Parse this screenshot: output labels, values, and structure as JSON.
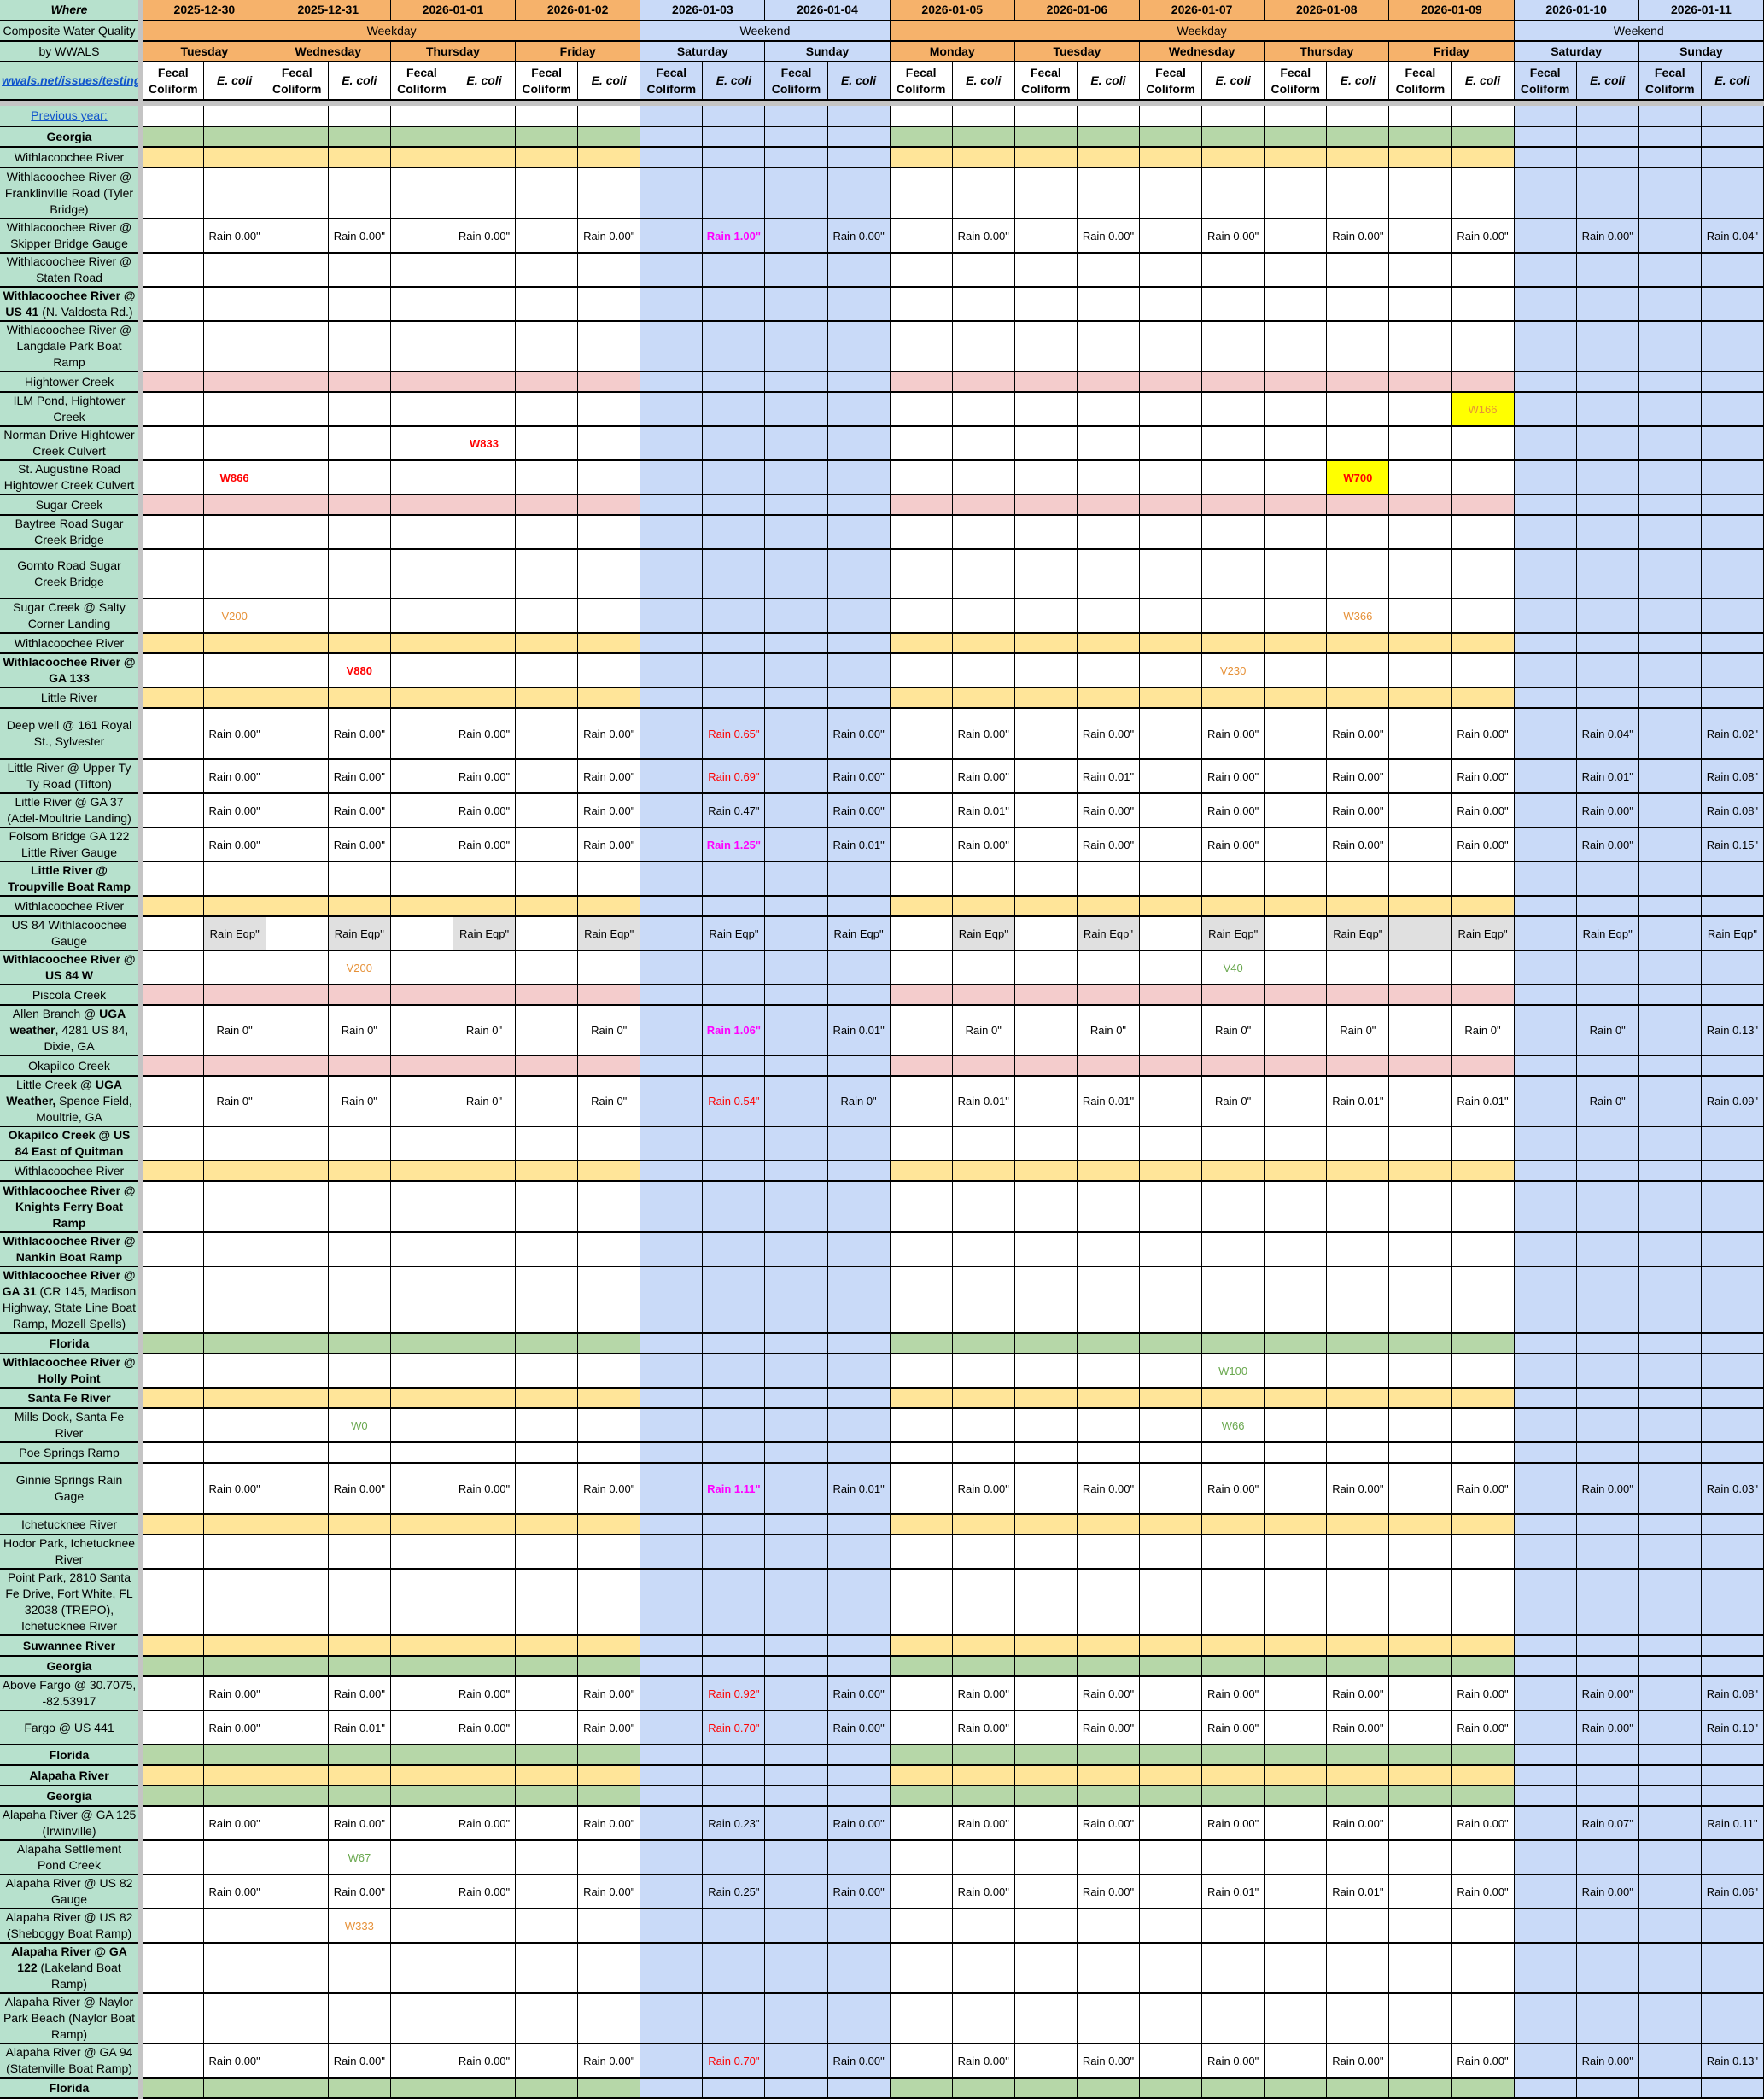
{
  "header": {
    "where": "Where",
    "title_line1": "Composite Water Quality",
    "title_line2": "by WWALS",
    "link": "wwals.net/issues/testing/",
    "previous_year": "Previous year:",
    "fecal_label": "Fecal Coliform",
    "ecoli_label": "E. coli",
    "groups": [
      {
        "label": "Weekday",
        "days": 4,
        "weekend": false
      },
      {
        "label": "Weekend",
        "days": 2,
        "weekend": true
      },
      {
        "label": "Weekday",
        "days": 5,
        "weekend": false
      },
      {
        "label": "Weekend",
        "days": 2,
        "weekend": true
      }
    ]
  },
  "days": [
    {
      "date": "2025-12-30",
      "day": "Tuesday",
      "weekend": false
    },
    {
      "date": "2025-12-31",
      "day": "Wednesday",
      "weekend": false
    },
    {
      "date": "2026-01-01",
      "day": "Thursday",
      "weekend": false
    },
    {
      "date": "2026-01-02",
      "day": "Friday",
      "weekend": false
    },
    {
      "date": "2026-01-03",
      "day": "Saturday",
      "weekend": true
    },
    {
      "date": "2026-01-04",
      "day": "Sunday",
      "weekend": true
    },
    {
      "date": "2026-01-05",
      "day": "Monday",
      "weekend": false
    },
    {
      "date": "2026-01-06",
      "day": "Tuesday",
      "weekend": false
    },
    {
      "date": "2026-01-07",
      "day": "Wednesday",
      "weekend": false
    },
    {
      "date": "2026-01-08",
      "day": "Thursday",
      "weekend": false
    },
    {
      "date": "2026-01-09",
      "day": "Friday",
      "weekend": false
    },
    {
      "date": "2026-01-10",
      "day": "Saturday",
      "weekend": true
    },
    {
      "date": "2026-01-11",
      "day": "Sunday",
      "weekend": true
    }
  ],
  "colors": {
    "left_column": "#b7e1cd",
    "weekday_header": "#f6b26b",
    "weekend": "#c9daf8",
    "section_state": "#b6d7a8",
    "section_river": "#ffe599",
    "section_creek": "#f4cccc",
    "equipment_grey": "#e0e0e0",
    "exceedance_red": "#ff0000",
    "heavy_rain_magenta": "#ff00ff"
  },
  "rows": [
    {
      "type": "g",
      "label": [
        {
          "t": "Georgia",
          "b": true
        }
      ]
    },
    {
      "type": "y",
      "label": [
        {
          "t": "Withlacoochee River"
        }
      ]
    },
    {
      "type": "s",
      "label": [
        {
          "t": "Withlacoochee River @ Franklinville Road (Tyler Bridge)"
        }
      ]
    },
    {
      "type": "s",
      "label": [
        {
          "t": "Withlacoochee River @ Skipper Bridge Gauge"
        }
      ],
      "rain": [
        "Rain 0.00\"",
        "Rain 0.00\"",
        "Rain 0.00\"",
        "Rain 0.00\"",
        "Rain 1.00\"",
        "Rain 0.00\"",
        "Rain 0.00\"",
        "Rain 0.00\"",
        "Rain 0.00\"",
        "Rain 0.00\"",
        "Rain 0.00\"",
        "Rain 0.00\"",
        "Rain 0.04\""
      ],
      "rain_styles": {
        "4": "magenta"
      }
    },
    {
      "type": "s",
      "label": [
        {
          "t": "Withlacoochee River @ Staten Road"
        }
      ]
    },
    {
      "type": "s",
      "label": [
        {
          "t": "Withlacoochee River @ US 41",
          "b": true
        },
        {
          "t": " (N. Valdosta Rd.)"
        }
      ]
    },
    {
      "type": "s",
      "label": [
        {
          "t": "Withlacoochee River @ Langdale Park Boat Ramp"
        }
      ]
    },
    {
      "type": "p",
      "label": [
        {
          "t": "Hightower Creek"
        }
      ]
    },
    {
      "type": "s",
      "label": [
        {
          "t": "ILM Pond, Hightower Creek"
        }
      ],
      "values": [
        {
          "d": 10,
          "c": "e",
          "t": "W166",
          "s": "hl-orange"
        }
      ]
    },
    {
      "type": "s",
      "label": [
        {
          "t": "Norman Drive Hightower Creek Culvert"
        }
      ],
      "values": [
        {
          "d": 2,
          "c": "e",
          "t": "W833",
          "s": "red-bold"
        }
      ]
    },
    {
      "type": "s",
      "label": [
        {
          "t": "St. Augustine Road Hightower Creek Culvert"
        }
      ],
      "values": [
        {
          "d": 0,
          "c": "e",
          "t": "W866",
          "s": "red-bold"
        },
        {
          "d": 9,
          "c": "e",
          "t": "W700",
          "s": "hl-red"
        }
      ]
    },
    {
      "type": "p",
      "label": [
        {
          "t": "Sugar Creek"
        }
      ]
    },
    {
      "type": "s",
      "label": [
        {
          "t": "Baytree Road Sugar Creek Bridge"
        }
      ]
    },
    {
      "type": "s",
      "label": [
        {
          "t": "Gornto Road Sugar Creek Bridge"
        }
      ]
    },
    {
      "type": "s",
      "label": [
        {
          "t": "Sugar Creek @ Salty Corner Landing"
        }
      ],
      "values": [
        {
          "d": 0,
          "c": "e",
          "t": "V200",
          "s": "orange"
        },
        {
          "d": 9,
          "c": "e",
          "t": "W366",
          "s": "orange"
        }
      ]
    },
    {
      "type": "y",
      "label": [
        {
          "t": "Withlacoochee River"
        }
      ]
    },
    {
      "type": "s",
      "label": [
        {
          "t": "Withlacoochee River @ GA 133",
          "b": true
        }
      ],
      "values": [
        {
          "d": 1,
          "c": "e",
          "t": "V880",
          "s": "red-bold"
        },
        {
          "d": 8,
          "c": "e",
          "t": "V230",
          "s": "orange"
        }
      ]
    },
    {
      "type": "y",
      "label": [
        {
          "t": "Little River"
        }
      ]
    },
    {
      "type": "s",
      "label": [
        {
          "t": "Deep well @ 161 Royal St., Sylvester"
        }
      ],
      "rain": [
        "Rain 0.00\"",
        "Rain 0.00\"",
        "Rain 0.00\"",
        "Rain 0.00\"",
        "Rain 0.65\"",
        "Rain 0.00\"",
        "Rain 0.00\"",
        "Rain 0.00\"",
        "Rain 0.00\"",
        "Rain 0.00\"",
        "Rain 0.00\"",
        "Rain 0.04\"",
        "Rain 0.02\""
      ],
      "rain_styles": {
        "4": "red"
      }
    },
    {
      "type": "s",
      "label": [
        {
          "t": "Little River @ Upper Ty Ty Road (Tifton)"
        }
      ],
      "rain": [
        "Rain 0.00\"",
        "Rain 0.00\"",
        "Rain 0.00\"",
        "Rain 0.00\"",
        "Rain 0.69\"",
        "Rain 0.00\"",
        "Rain 0.00\"",
        "Rain 0.01\"",
        "Rain 0.00\"",
        "Rain 0.00\"",
        "Rain 0.00\"",
        "Rain 0.01\"",
        "Rain 0.08\""
      ],
      "rain_styles": {
        "4": "red"
      }
    },
    {
      "type": "s",
      "label": [
        {
          "t": "Little River @ GA 37 (Adel-Moultrie Landing)"
        }
      ],
      "rain": [
        "Rain 0.00\"",
        "Rain 0.00\"",
        "Rain 0.00\"",
        "Rain 0.00\"",
        "Rain 0.47\"",
        "Rain 0.00\"",
        "Rain 0.01\"",
        "Rain 0.00\"",
        "Rain 0.00\"",
        "Rain 0.00\"",
        "Rain 0.00\"",
        "Rain 0.00\"",
        "Rain 0.08\""
      ]
    },
    {
      "type": "s",
      "label": [
        {
          "t": "Folsom Bridge GA 122 Little River Gauge"
        }
      ],
      "rain": [
        "Rain 0.00\"",
        "Rain 0.00\"",
        "Rain 0.00\"",
        "Rain 0.00\"",
        "Rain 1.25\"",
        "Rain 0.01\"",
        "Rain 0.00\"",
        "Rain 0.00\"",
        "Rain 0.00\"",
        "Rain 0.00\"",
        "Rain 0.00\"",
        "Rain 0.00\"",
        "Rain 0.15\""
      ],
      "rain_styles": {
        "4": "magenta"
      }
    },
    {
      "type": "s",
      "label": [
        {
          "t": "Little River @ Troupville Boat Ramp",
          "b": true
        }
      ]
    },
    {
      "type": "y",
      "label": [
        {
          "t": "Withlacoochee River"
        }
      ]
    },
    {
      "type": "s",
      "label": [
        {
          "t": "US 84 Withlacoochee Gauge"
        }
      ],
      "rain": [
        "Rain Eqp\"",
        "Rain Eqp\"",
        "Rain Eqp\"",
        "Rain Eqp\"",
        "Rain Eqp\"",
        "Rain Eqp\"",
        "Rain Eqp\"",
        "Rain Eqp\"",
        "Rain Eqp\"",
        "Rain Eqp\"",
        "Rain Eqp\"",
        "Rain Eqp\"",
        "Rain Eqp\""
      ],
      "grey": [
        "0e",
        "1e",
        "2e",
        "3e",
        "6e",
        "7e",
        "8e",
        "9e",
        "10f",
        "10e"
      ]
    },
    {
      "type": "s",
      "label": [
        {
          "t": "Withlacoochee River @ US 84 W",
          "b": true
        }
      ],
      "values": [
        {
          "d": 1,
          "c": "e",
          "t": "V200",
          "s": "orange"
        },
        {
          "d": 8,
          "c": "e",
          "t": "V40",
          "s": "green"
        }
      ]
    },
    {
      "type": "p",
      "label": [
        {
          "t": "Piscola Creek"
        }
      ]
    },
    {
      "type": "s",
      "label": [
        {
          "t": "Allen  Branch @ "
        },
        {
          "t": "UGA weather",
          "b": true
        },
        {
          "t": ", 4281 US 84, Dixie, GA"
        }
      ],
      "rain": [
        "Rain 0\"",
        "Rain 0\"",
        "Rain 0\"",
        "Rain 0\"",
        "Rain 1.06\"",
        "Rain 0.01\"",
        "Rain 0\"",
        "Rain 0\"",
        "Rain 0\"",
        "Rain 0\"",
        "Rain 0\"",
        "Rain 0\"",
        "Rain 0.13\""
      ],
      "rain_styles": {
        "4": "magenta"
      }
    },
    {
      "type": "p",
      "label": [
        {
          "t": "Okapilco Creek"
        }
      ]
    },
    {
      "type": "s",
      "label": [
        {
          "t": "Little Creek @ "
        },
        {
          "t": "UGA Weather,",
          "b": true
        },
        {
          "t": " Spence Field, Moultrie, GA"
        }
      ],
      "rain": [
        "Rain 0\"",
        "Rain 0\"",
        "Rain 0\"",
        "Rain 0\"",
        "Rain 0.54\"",
        "Rain 0\"",
        "Rain 0.01\"",
        "Rain 0.01\"",
        "Rain 0\"",
        "Rain 0.01\"",
        "Rain 0.01\"",
        "Rain 0\"",
        "Rain 0.09\""
      ],
      "rain_styles": {
        "4": "red"
      }
    },
    {
      "type": "s",
      "label": [
        {
          "t": "Okapilco Creek @ US 84 East of Quitman",
          "b": true
        }
      ]
    },
    {
      "type": "y",
      "label": [
        {
          "t": "Withlacoochee River"
        }
      ]
    },
    {
      "type": "s",
      "label": [
        {
          "t": "Withlacoochee River @ Knights Ferry Boat Ramp",
          "b": true
        }
      ]
    },
    {
      "type": "s",
      "label": [
        {
          "t": "Withlacoochee River @ Nankin Boat Ramp",
          "b": true
        }
      ]
    },
    {
      "type": "s",
      "label": [
        {
          "t": "Withlacoochee River @ GA 31",
          "b": true
        },
        {
          "t": " (CR 145, Madison Highway, State Line Boat Ramp, Mozell Spells)"
        }
      ]
    },
    {
      "type": "g",
      "label": [
        {
          "t": "Florida",
          "b": true
        }
      ]
    },
    {
      "type": "s",
      "label": [
        {
          "t": "Withlacoochee River @ Holly Point",
          "b": true
        }
      ],
      "values": [
        {
          "d": 8,
          "c": "e",
          "t": "W100",
          "s": "green"
        }
      ]
    },
    {
      "type": "y",
      "label": [
        {
          "t": "Santa Fe River",
          "b": true
        }
      ]
    },
    {
      "type": "s",
      "label": [
        {
          "t": "Mills Dock, Santa Fe River"
        }
      ],
      "values": [
        {
          "d": 1,
          "c": "e",
          "t": "W0",
          "s": "green"
        },
        {
          "d": 8,
          "c": "e",
          "t": "W66",
          "s": "green"
        }
      ]
    },
    {
      "type": "s",
      "label": [
        {
          "t": "Poe Springs Ramp"
        }
      ]
    },
    {
      "type": "s",
      "label": [
        {
          "t": "Ginnie Springs Rain Gage"
        }
      ],
      "rain": [
        "Rain 0.00\"",
        "Rain 0.00\"",
        "Rain 0.00\"",
        "Rain 0.00\"",
        "Rain 1.11\"",
        "Rain 0.01\"",
        "Rain 0.00\"",
        "Rain 0.00\"",
        "Rain 0.00\"",
        "Rain 0.00\"",
        "Rain 0.00\"",
        "Rain 0.00\"",
        "Rain 0.03\""
      ],
      "rain_styles": {
        "4": "magenta"
      }
    },
    {
      "type": "y",
      "label": [
        {
          "t": "Ichetucknee River"
        }
      ]
    },
    {
      "type": "s",
      "label": [
        {
          "t": "Hodor Park, Ichetucknee River"
        }
      ]
    },
    {
      "type": "s",
      "label": [
        {
          "t": "Point Park, 2810 Santa Fe Drive, Fort White, FL 32038 (TREPO), Ichetucknee River"
        }
      ]
    },
    {
      "type": "y",
      "label": [
        {
          "t": "Suwannee River",
          "b": true
        }
      ]
    },
    {
      "type": "g",
      "label": [
        {
          "t": "Georgia",
          "b": true
        }
      ]
    },
    {
      "type": "s",
      "label": [
        {
          "t": "Above Fargo @ 30.7075, -82.53917"
        }
      ],
      "rain": [
        "Rain 0.00\"",
        "Rain 0.00\"",
        "Rain 0.00\"",
        "Rain 0.00\"",
        "Rain 0.92\"",
        "Rain 0.00\"",
        "Rain 0.00\"",
        "Rain 0.00\"",
        "Rain 0.00\"",
        "Rain 0.00\"",
        "Rain 0.00\"",
        "Rain 0.00\"",
        "Rain 0.08\""
      ],
      "rain_styles": {
        "4": "red"
      }
    },
    {
      "type": "s",
      "label": [
        {
          "t": "Fargo @ US 441"
        }
      ],
      "rain": [
        "Rain 0.00\"",
        "Rain 0.01\"",
        "Rain 0.00\"",
        "Rain 0.00\"",
        "Rain 0.70\"",
        "Rain 0.00\"",
        "Rain 0.00\"",
        "Rain 0.00\"",
        "Rain 0.00\"",
        "Rain 0.00\"",
        "Rain 0.00\"",
        "Rain 0.00\"",
        "Rain 0.10\""
      ],
      "rain_styles": {
        "4": "red"
      }
    },
    {
      "type": "g",
      "label": [
        {
          "t": "Florida",
          "b": true
        }
      ]
    },
    {
      "type": "y",
      "label": [
        {
          "t": "Alapaha River",
          "b": true
        }
      ]
    },
    {
      "type": "g",
      "label": [
        {
          "t": "Georgia",
          "b": true
        }
      ]
    },
    {
      "type": "s",
      "label": [
        {
          "t": "Alapaha River @ GA 125 (Irwinville)"
        }
      ],
      "rain": [
        "Rain 0.00\"",
        "Rain 0.00\"",
        "Rain 0.00\"",
        "Rain 0.00\"",
        "Rain 0.23\"",
        "Rain 0.00\"",
        "Rain 0.00\"",
        "Rain 0.00\"",
        "Rain 0.00\"",
        "Rain 0.00\"",
        "Rain 0.00\"",
        "Rain 0.07\"",
        "Rain 0.11\""
      ]
    },
    {
      "type": "s",
      "label": [
        {
          "t": "Alapaha Settlement Pond Creek"
        }
      ],
      "values": [
        {
          "d": 1,
          "c": "e",
          "t": "W67",
          "s": "green"
        }
      ]
    },
    {
      "type": "s",
      "label": [
        {
          "t": "Alapaha River @ US 82 Gauge"
        }
      ],
      "rain": [
        "Rain 0.00\"",
        "Rain 0.00\"",
        "Rain 0.00\"",
        "Rain 0.00\"",
        "Rain 0.25\"",
        "Rain 0.00\"",
        "Rain 0.00\"",
        "Rain 0.00\"",
        "Rain 0.01\"",
        "Rain 0.01\"",
        "Rain 0.00\"",
        "Rain 0.00\"",
        "Rain 0.06\""
      ]
    },
    {
      "type": "s",
      "label": [
        {
          "t": "Alapaha River @ US 82 (Sheboggy Boat Ramp)"
        }
      ],
      "values": [
        {
          "d": 1,
          "c": "e",
          "t": "W333",
          "s": "orange"
        }
      ]
    },
    {
      "type": "s",
      "label": [
        {
          "t": "Alapaha River @ GA 122",
          "b": true
        },
        {
          "t": " (Lakeland Boat Ramp)"
        }
      ]
    },
    {
      "type": "s",
      "label": [
        {
          "t": "Alapaha River @ Naylor Park Beach (Naylor Boat Ramp)"
        }
      ]
    },
    {
      "type": "s",
      "label": [
        {
          "t": "Alapaha River @ GA 94 (Statenville Boat Ramp)"
        }
      ],
      "rain": [
        "Rain 0.00\"",
        "Rain 0.00\"",
        "Rain 0.00\"",
        "Rain 0.00\"",
        "Rain 0.70\"",
        "Rain 0.00\"",
        "Rain 0.00\"",
        "Rain 0.00\"",
        "Rain 0.00\"",
        "Rain 0.00\"",
        "Rain 0.00\"",
        "Rain 0.00\"",
        "Rain 0.13\""
      ],
      "rain_styles": {
        "4": "red"
      }
    },
    {
      "type": "g",
      "label": [
        {
          "t": "Florida",
          "b": true
        }
      ]
    }
  ]
}
